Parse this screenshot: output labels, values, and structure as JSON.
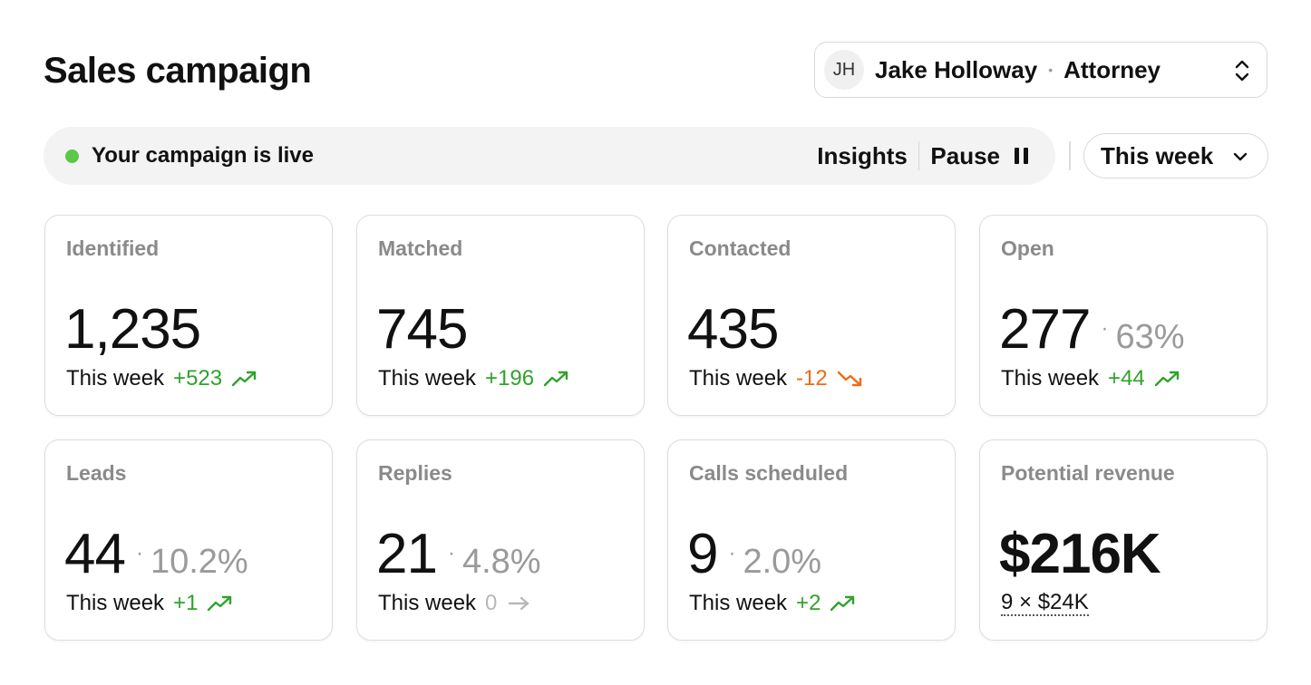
{
  "header": {
    "title": "Sales campaign",
    "user": {
      "initials": "JH",
      "name": "Jake Holloway",
      "separator": "•",
      "role": "Attorney"
    }
  },
  "status": {
    "text": "Your campaign is live",
    "insights_label": "Insights",
    "pause_label": "Pause",
    "live_color": "#5cc84a"
  },
  "period": {
    "label": "This week"
  },
  "colors": {
    "up": "#2fa32b",
    "down": "#f06a12",
    "flat": "#b8b8b8"
  },
  "cards": [
    {
      "label": "Identified",
      "value": "1,235",
      "foot": "This week",
      "delta": "+523",
      "trend": "up"
    },
    {
      "label": "Matched",
      "value": "745",
      "foot": "This week",
      "delta": "+196",
      "trend": "up"
    },
    {
      "label": "Contacted",
      "value": "435",
      "foot": "This week",
      "delta": "-12",
      "trend": "down"
    },
    {
      "label": "Open",
      "value": "277",
      "dot": "·",
      "pct": "63%",
      "foot": "This week",
      "delta": "+44",
      "trend": "up"
    },
    {
      "label": "Leads",
      "value": "44",
      "dot": "·",
      "pct": "10.2%",
      "foot": "This week",
      "delta": "+1",
      "trend": "up"
    },
    {
      "label": "Replies",
      "value": "21",
      "dot": "·",
      "pct": "4.8%",
      "foot": "This week",
      "delta": "0",
      "trend": "flat"
    },
    {
      "label": "Calls scheduled",
      "value": "9",
      "dot": "·",
      "pct": "2.0%",
      "foot": "This week",
      "delta": "+2",
      "trend": "up"
    },
    {
      "label": "Potential revenue",
      "value": "$216K",
      "formula": "9 × $24K"
    }
  ]
}
